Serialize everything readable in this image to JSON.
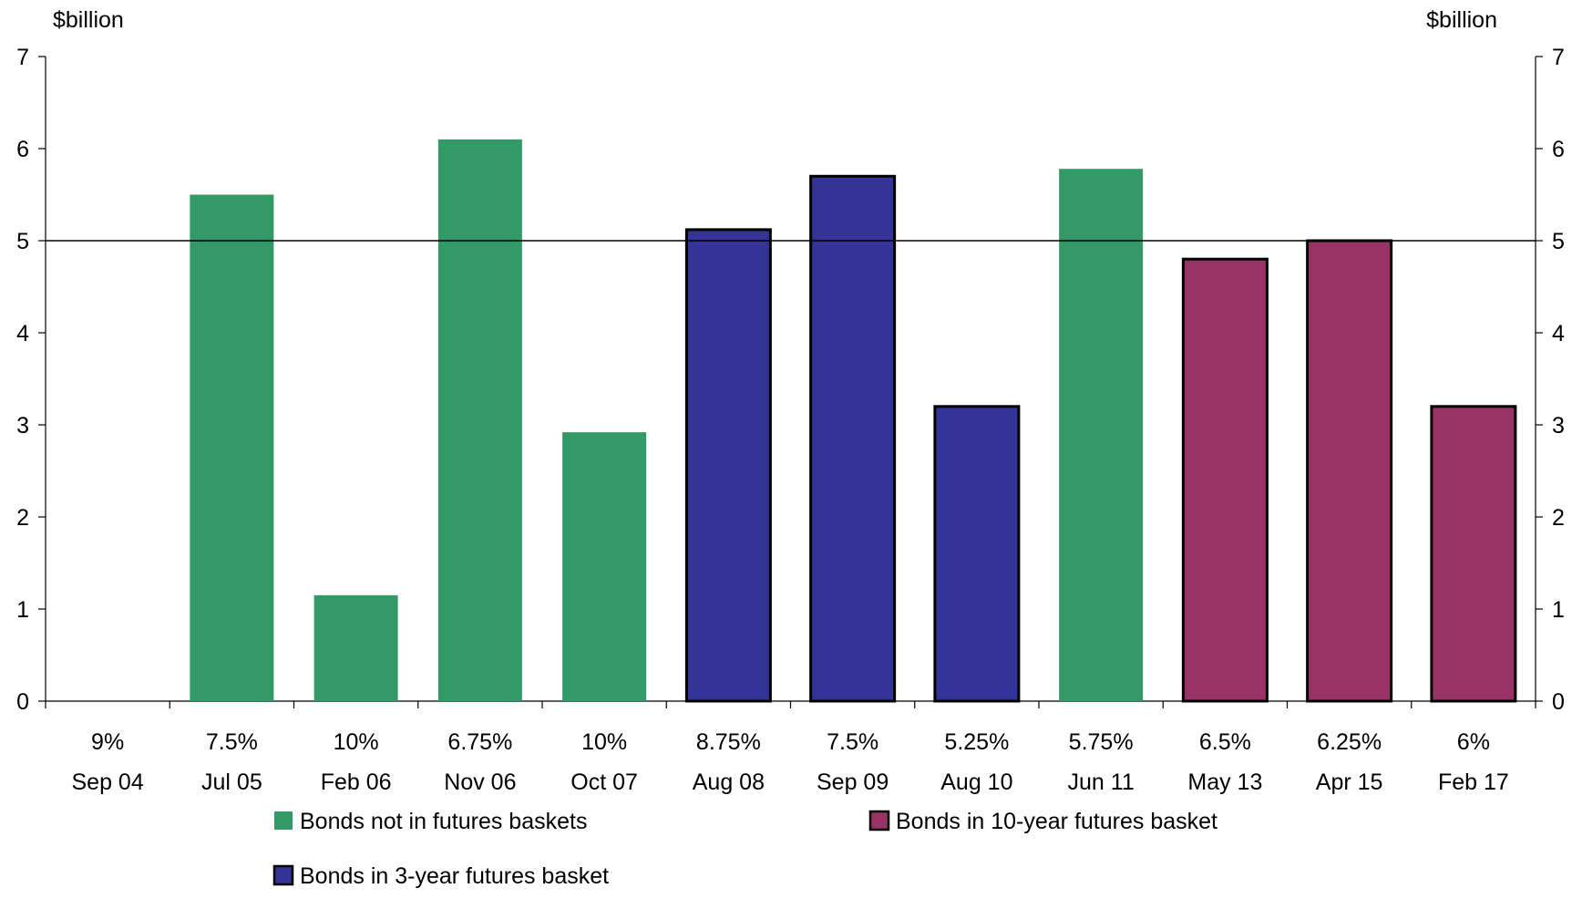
{
  "chart_data": {
    "type": "bar",
    "left_unit": "$billion",
    "right_unit": "$billion",
    "ylim": [
      0,
      7
    ],
    "yticks": [
      0,
      1,
      2,
      3,
      4,
      5,
      6,
      7
    ],
    "reference_line": 5,
    "grid": false,
    "legend_position": "bottom",
    "categories": [
      {
        "coupon": "9%",
        "date": "Sep 04"
      },
      {
        "coupon": "7.5%",
        "date": "Jul 05"
      },
      {
        "coupon": "10%",
        "date": "Feb 06"
      },
      {
        "coupon": "6.75%",
        "date": "Nov 06"
      },
      {
        "coupon": "10%",
        "date": "Oct 07"
      },
      {
        "coupon": "8.75%",
        "date": "Aug 08"
      },
      {
        "coupon": "7.5%",
        "date": "Sep 09"
      },
      {
        "coupon": "5.25%",
        "date": "Aug 10"
      },
      {
        "coupon": "5.75%",
        "date": "Jun 11"
      },
      {
        "coupon": "6.5%",
        "date": "May 13"
      },
      {
        "coupon": "6.25%",
        "date": "Apr 15"
      },
      {
        "coupon": "6%",
        "date": "Feb 17"
      }
    ],
    "values": [
      0,
      5.5,
      1.15,
      6.1,
      2.92,
      5.12,
      5.7,
      3.2,
      5.78,
      4.8,
      5.0,
      3.2
    ],
    "groups": [
      0,
      0,
      0,
      0,
      0,
      1,
      1,
      1,
      0,
      2,
      2,
      2
    ],
    "series": [
      {
        "name": "Bonds not in futures baskets",
        "color": "#339966",
        "outlined": false
      },
      {
        "name": "Bonds in 3-year futures basket",
        "color": "#333399",
        "outlined": true
      },
      {
        "name": "Bonds in 10-year futures basket",
        "color": "#993366",
        "outlined": true
      }
    ]
  }
}
